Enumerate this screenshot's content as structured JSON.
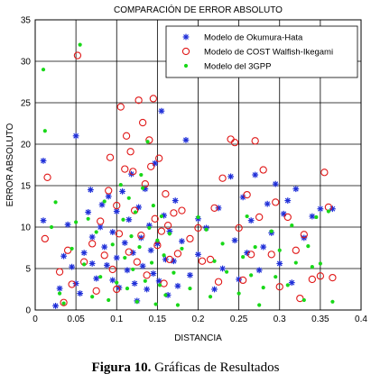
{
  "caption": {
    "label": "Figura 10.",
    "text": " Gráficas de Resultados"
  },
  "chart_data": {
    "type": "scatter",
    "title": "COMPARACIÓN DE ERROR ABSOLUTO",
    "xlabel": "DISTANCIA",
    "ylabel": "ERROR ABSOLUTO",
    "xlim": [
      0,
      0.4
    ],
    "ylim": [
      0,
      35
    ],
    "xticks": [
      "0",
      "0.05",
      "0.1",
      "0.15",
      "0.2",
      "0.25",
      "0.3",
      "0.35",
      "0.4"
    ],
    "yticks": [
      "0",
      "5",
      "10",
      "15",
      "20",
      "25",
      "30",
      "35"
    ],
    "grid": true,
    "legend_position": "top-right",
    "series": [
      {
        "name": "Modelo de Okumura-Hata",
        "marker": "star",
        "color": "#1f2fd8",
        "points": [
          [
            0.01,
            18.0
          ],
          [
            0.01,
            10.8
          ],
          [
            0.025,
            0.5
          ],
          [
            0.03,
            2.6
          ],
          [
            0.035,
            6.5
          ],
          [
            0.04,
            10.3
          ],
          [
            0.045,
            5.2
          ],
          [
            0.05,
            21.0
          ],
          [
            0.05,
            3.2
          ],
          [
            0.055,
            2.0
          ],
          [
            0.06,
            6.9
          ],
          [
            0.065,
            11.8
          ],
          [
            0.068,
            14.5
          ],
          [
            0.07,
            8.8
          ],
          [
            0.07,
            5.6
          ],
          [
            0.075,
            3.8
          ],
          [
            0.08,
            10.0
          ],
          [
            0.082,
            12.7
          ],
          [
            0.085,
            7.6
          ],
          [
            0.088,
            5.4
          ],
          [
            0.09,
            13.7
          ],
          [
            0.095,
            9.4
          ],
          [
            0.095,
            3.6
          ],
          [
            0.1,
            11.9
          ],
          [
            0.1,
            6.3
          ],
          [
            0.103,
            2.7
          ],
          [
            0.107,
            14.3
          ],
          [
            0.11,
            8.1
          ],
          [
            0.113,
            4.8
          ],
          [
            0.115,
            10.9
          ],
          [
            0.118,
            16.4
          ],
          [
            0.12,
            6.9
          ],
          [
            0.122,
            3.2
          ],
          [
            0.125,
            1.1
          ],
          [
            0.127,
            12.4
          ],
          [
            0.13,
            8.7
          ],
          [
            0.132,
            5.3
          ],
          [
            0.135,
            14.6
          ],
          [
            0.137,
            2.5
          ],
          [
            0.14,
            10.2
          ],
          [
            0.142,
            7.2
          ],
          [
            0.145,
            4.4
          ],
          [
            0.147,
            17.7
          ],
          [
            0.15,
            8.0
          ],
          [
            0.152,
            3.5
          ],
          [
            0.155,
            24.0
          ],
          [
            0.158,
            11.4
          ],
          [
            0.16,
            6.1
          ],
          [
            0.163,
            1.8
          ],
          [
            0.165,
            9.5
          ],
          [
            0.17,
            5.9
          ],
          [
            0.172,
            13.2
          ],
          [
            0.175,
            2.9
          ],
          [
            0.18,
            8.3
          ],
          [
            0.185,
            20.5
          ],
          [
            0.19,
            4.2
          ],
          [
            0.2,
            11.0
          ],
          [
            0.2,
            6.7
          ],
          [
            0.21,
            9.9
          ],
          [
            0.22,
            2.5
          ],
          [
            0.225,
            12.3
          ],
          [
            0.23,
            5.0
          ],
          [
            0.24,
            16.1
          ],
          [
            0.245,
            8.4
          ],
          [
            0.25,
            3.7
          ],
          [
            0.255,
            13.6
          ],
          [
            0.26,
            6.9
          ],
          [
            0.265,
            10.8
          ],
          [
            0.27,
            16.3
          ],
          [
            0.275,
            4.8
          ],
          [
            0.28,
            7.6
          ],
          [
            0.285,
            12.8
          ],
          [
            0.29,
            9.3
          ],
          [
            0.295,
            15.2
          ],
          [
            0.3,
            5.6
          ],
          [
            0.305,
            11.6
          ],
          [
            0.31,
            13.2
          ],
          [
            0.315,
            3.3
          ],
          [
            0.32,
            14.6
          ],
          [
            0.33,
            8.7
          ],
          [
            0.34,
            11.3
          ],
          [
            0.35,
            12.2
          ],
          [
            0.365,
            12.2
          ]
        ]
      },
      {
        "name": "Modelo de COST Walfish-Ikegami",
        "marker": "circle",
        "color": "#e01818",
        "points": [
          [
            0.012,
            8.6
          ],
          [
            0.015,
            16.0
          ],
          [
            0.03,
            4.6
          ],
          [
            0.035,
            0.9
          ],
          [
            0.04,
            7.2
          ],
          [
            0.045,
            3.1
          ],
          [
            0.052,
            30.7
          ],
          [
            0.06,
            5.8
          ],
          [
            0.07,
            8.0
          ],
          [
            0.075,
            2.3
          ],
          [
            0.08,
            10.7
          ],
          [
            0.085,
            6.6
          ],
          [
            0.09,
            14.4
          ],
          [
            0.092,
            18.4
          ],
          [
            0.095,
            4.9
          ],
          [
            0.1,
            12.6
          ],
          [
            0.1,
            2.5
          ],
          [
            0.103,
            9.2
          ],
          [
            0.105,
            24.5
          ],
          [
            0.11,
            17.0
          ],
          [
            0.112,
            21.0
          ],
          [
            0.115,
            7.0
          ],
          [
            0.117,
            19.1
          ],
          [
            0.12,
            16.7
          ],
          [
            0.122,
            12.0
          ],
          [
            0.125,
            5.8
          ],
          [
            0.127,
            25.3
          ],
          [
            0.13,
            9.0
          ],
          [
            0.132,
            22.6
          ],
          [
            0.135,
            15.2
          ],
          [
            0.137,
            4.2
          ],
          [
            0.14,
            20.5
          ],
          [
            0.142,
            17.3
          ],
          [
            0.145,
            25.5
          ],
          [
            0.147,
            11.0
          ],
          [
            0.15,
            7.8
          ],
          [
            0.152,
            18.3
          ],
          [
            0.155,
            9.5
          ],
          [
            0.158,
            3.2
          ],
          [
            0.16,
            14.0
          ],
          [
            0.163,
            10.2
          ],
          [
            0.165,
            6.1
          ],
          [
            0.17,
            11.7
          ],
          [
            0.175,
            6.8
          ],
          [
            0.18,
            12.0
          ],
          [
            0.19,
            8.6
          ],
          [
            0.2,
            9.9
          ],
          [
            0.205,
            5.9
          ],
          [
            0.215,
            6.1
          ],
          [
            0.22,
            12.3
          ],
          [
            0.225,
            3.4
          ],
          [
            0.23,
            15.9
          ],
          [
            0.24,
            20.6
          ],
          [
            0.245,
            20.2
          ],
          [
            0.25,
            9.9
          ],
          [
            0.255,
            3.6
          ],
          [
            0.26,
            13.9
          ],
          [
            0.265,
            6.7
          ],
          [
            0.27,
            20.4
          ],
          [
            0.275,
            11.2
          ],
          [
            0.28,
            16.9
          ],
          [
            0.29,
            6.7
          ],
          [
            0.295,
            13.0
          ],
          [
            0.3,
            2.8
          ],
          [
            0.31,
            11.2
          ],
          [
            0.32,
            7.2
          ],
          [
            0.325,
            1.4
          ],
          [
            0.33,
            9.1
          ],
          [
            0.34,
            3.7
          ],
          [
            0.35,
            4.1
          ],
          [
            0.355,
            16.6
          ],
          [
            0.36,
            12.4
          ],
          [
            0.365,
            3.9
          ]
        ]
      },
      {
        "name": "Modelo del 3GPP",
        "marker": "dot",
        "color": "#18d818",
        "points": [
          [
            0.01,
            29.0
          ],
          [
            0.012,
            21.6
          ],
          [
            0.02,
            10.0
          ],
          [
            0.025,
            13.0
          ],
          [
            0.03,
            2.0
          ],
          [
            0.035,
            0.8
          ],
          [
            0.045,
            7.4
          ],
          [
            0.05,
            10.6
          ],
          [
            0.055,
            32.0
          ],
          [
            0.06,
            5.5
          ],
          [
            0.065,
            11.0
          ],
          [
            0.07,
            1.6
          ],
          [
            0.075,
            9.4
          ],
          [
            0.08,
            4.0
          ],
          [
            0.085,
            13.1
          ],
          [
            0.09,
            1.2
          ],
          [
            0.095,
            7.9
          ],
          [
            0.1,
            3.3
          ],
          [
            0.105,
            15.1
          ],
          [
            0.108,
            10.9
          ],
          [
            0.11,
            6.3
          ],
          [
            0.113,
            2.6
          ],
          [
            0.115,
            13.5
          ],
          [
            0.118,
            8.9
          ],
          [
            0.12,
            4.9
          ],
          [
            0.123,
            11.8
          ],
          [
            0.125,
            1.0
          ],
          [
            0.128,
            7.6
          ],
          [
            0.13,
            16.3
          ],
          [
            0.132,
            14.7
          ],
          [
            0.135,
            3.5
          ],
          [
            0.138,
            20.3
          ],
          [
            0.14,
            9.9
          ],
          [
            0.143,
            5.7
          ],
          [
            0.145,
            12.6
          ],
          [
            0.148,
            0.7
          ],
          [
            0.15,
            8.4
          ],
          [
            0.153,
            3.0
          ],
          [
            0.155,
            11.3
          ],
          [
            0.158,
            6.6
          ],
          [
            0.16,
            1.8
          ],
          [
            0.165,
            9.2
          ],
          [
            0.17,
            4.5
          ],
          [
            0.175,
            0.6
          ],
          [
            0.18,
            7.4
          ],
          [
            0.19,
            2.6
          ],
          [
            0.2,
            11.2
          ],
          [
            0.21,
            9.7
          ],
          [
            0.215,
            1.6
          ],
          [
            0.22,
            5.9
          ],
          [
            0.23,
            8.0
          ],
          [
            0.235,
            4.6
          ],
          [
            0.25,
            2.0
          ],
          [
            0.255,
            6.4
          ],
          [
            0.26,
            11.3
          ],
          [
            0.265,
            4.2
          ],
          [
            0.27,
            7.6
          ],
          [
            0.275,
            0.6
          ],
          [
            0.28,
            2.7
          ],
          [
            0.29,
            9.5
          ],
          [
            0.295,
            4.0
          ],
          [
            0.3,
            7.2
          ],
          [
            0.31,
            3.0
          ],
          [
            0.315,
            10.2
          ],
          [
            0.32,
            5.7
          ],
          [
            0.33,
            1.2
          ],
          [
            0.335,
            7.7
          ],
          [
            0.34,
            5.2
          ],
          [
            0.345,
            11.2
          ],
          [
            0.35,
            5.6
          ],
          [
            0.36,
            11.9
          ],
          [
            0.365,
            1.0
          ]
        ]
      }
    ]
  }
}
